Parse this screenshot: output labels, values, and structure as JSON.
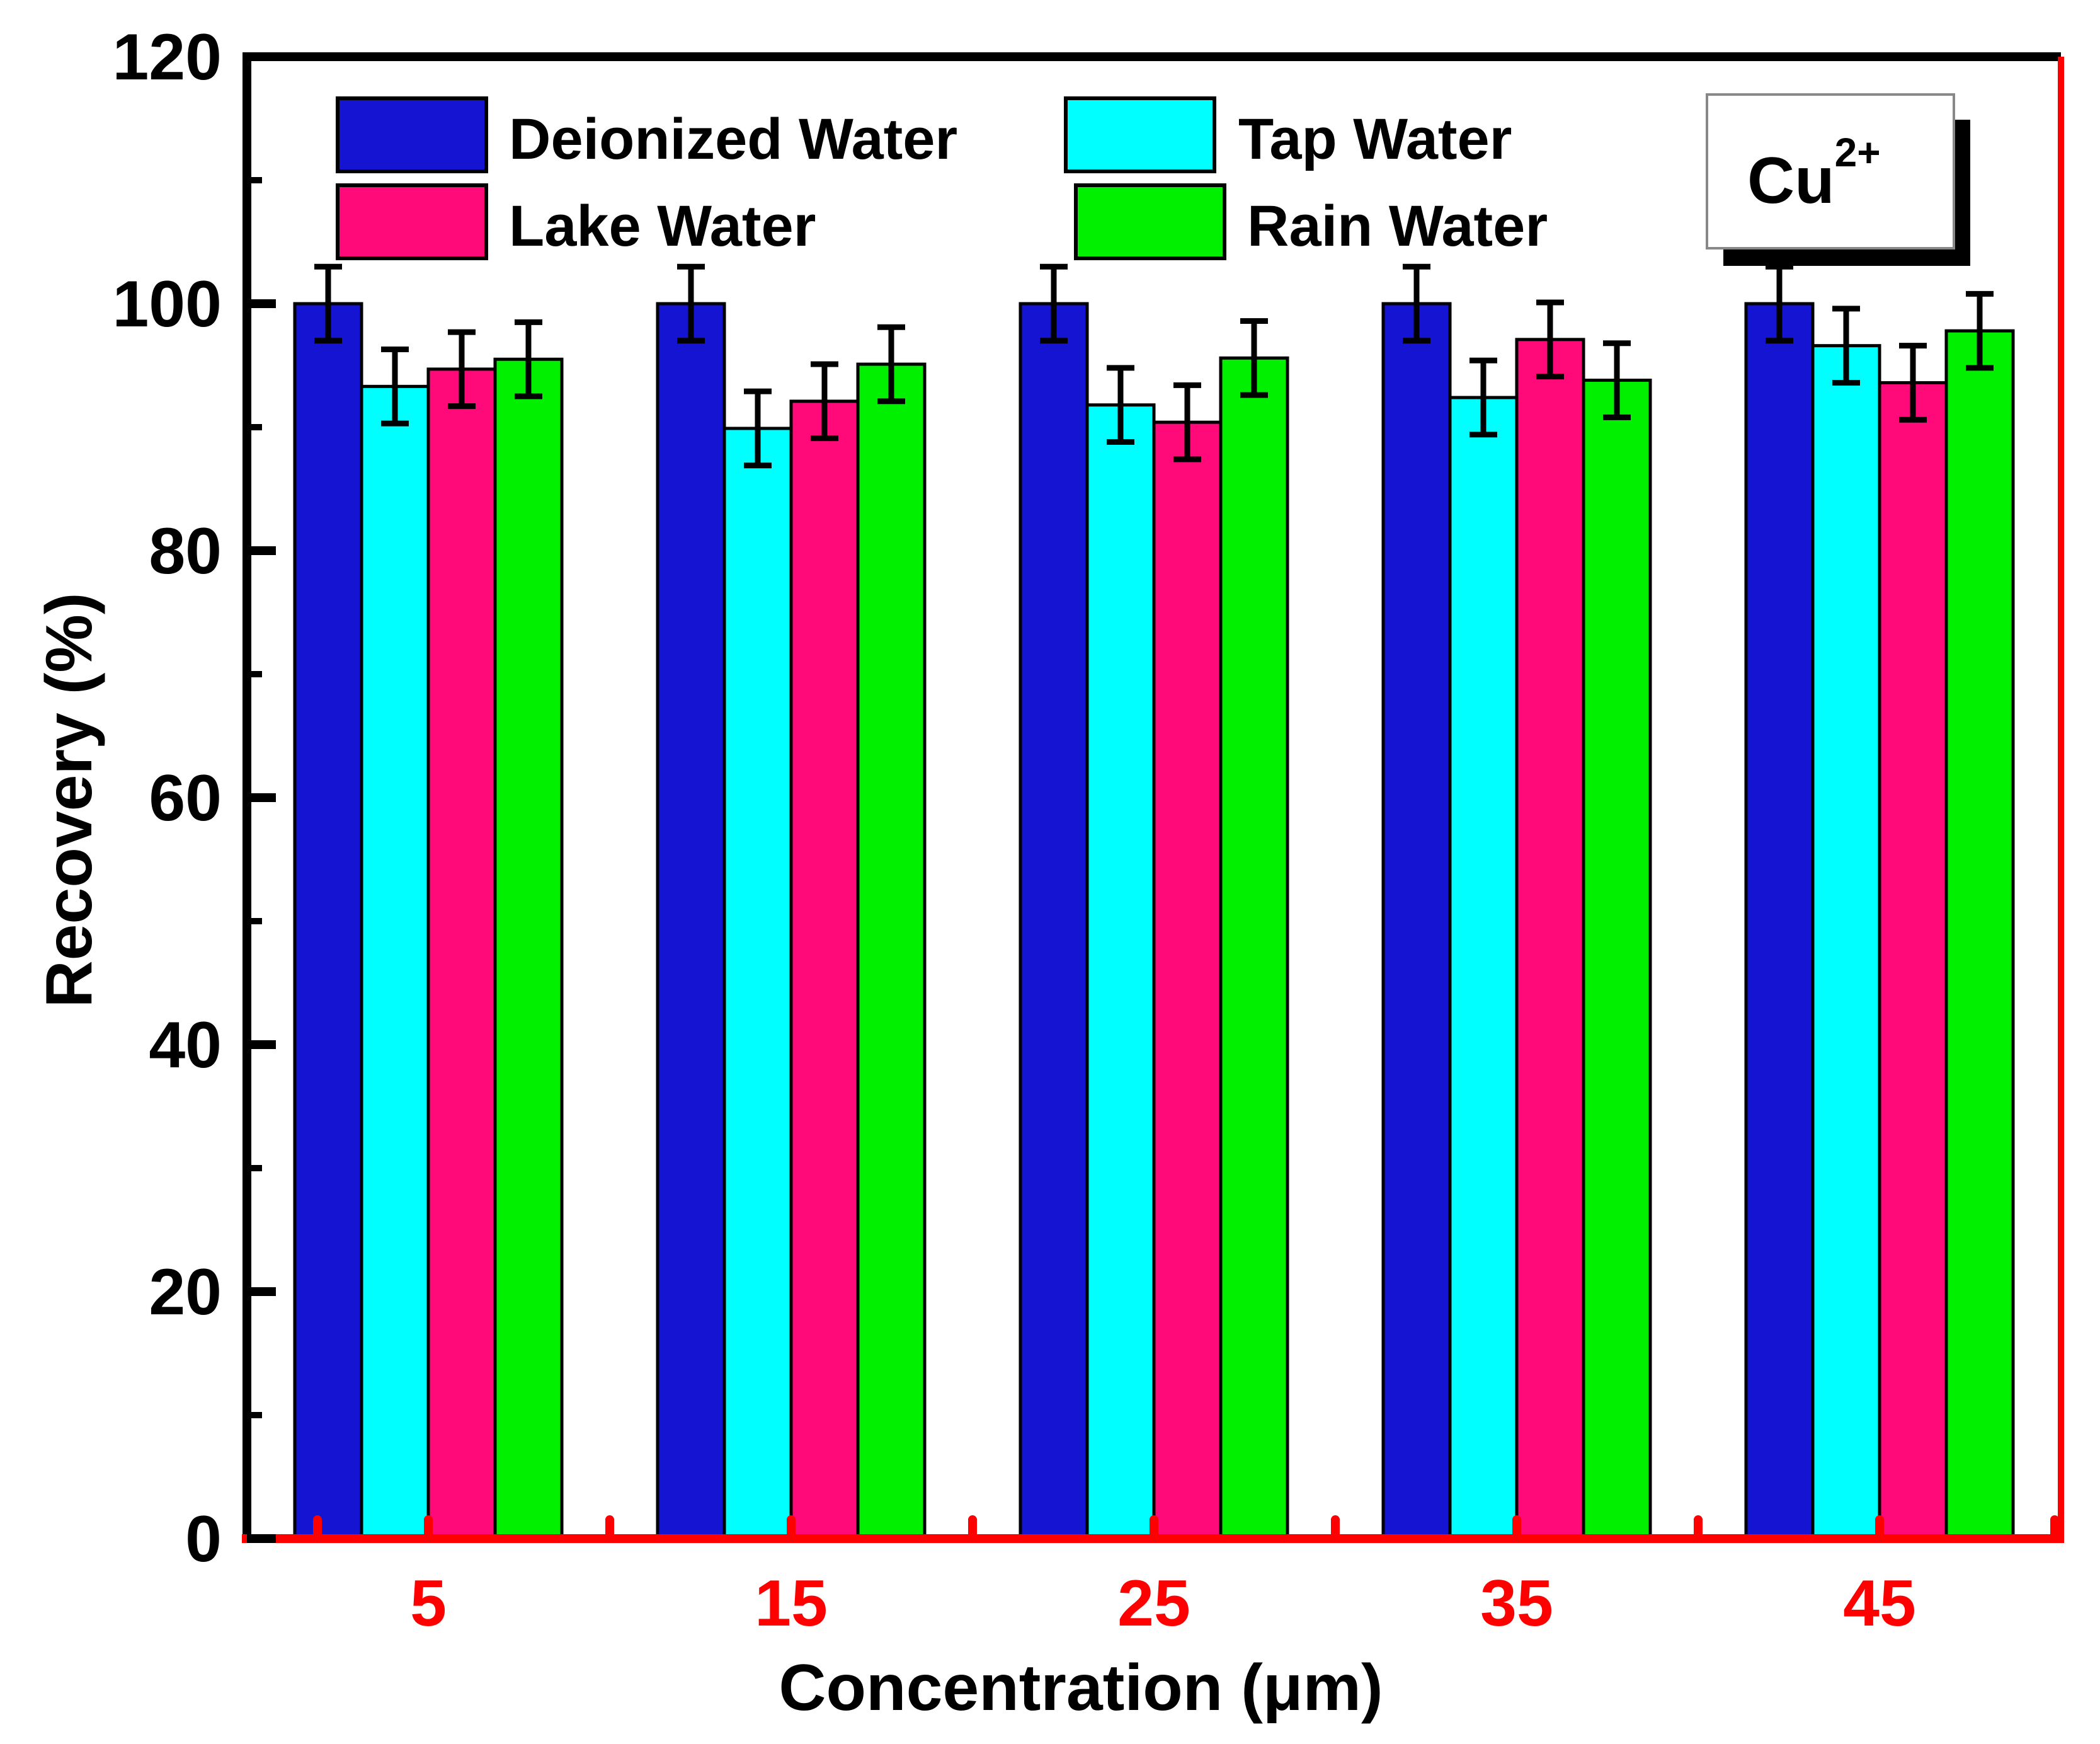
{
  "chart_data": {
    "type": "bar",
    "xlabel": "Concentration (μm)",
    "ylabel": "Recovery (%)",
    "ylim": [
      0,
      120
    ],
    "yticks": [
      "0",
      "20",
      "40",
      "60",
      "80",
      "100",
      "120"
    ],
    "categories": [
      "5",
      "15",
      "25",
      "35",
      "45"
    ],
    "series": [
      {
        "name": "Deionized Water",
        "color": "#1414d2",
        "values": [
          100,
          100,
          100,
          100,
          100
        ],
        "errors": [
          3,
          3,
          3,
          3,
          3
        ]
      },
      {
        "name": "Tap Water",
        "color": "#00ffff",
        "values": [
          93.3,
          89.9,
          91.8,
          92.4,
          96.6
        ],
        "errors": [
          3,
          3,
          3,
          3,
          3
        ]
      },
      {
        "name": "Lake Water",
        "color": "#ff0a78",
        "values": [
          94.7,
          92.1,
          90.4,
          97.1,
          93.6
        ],
        "errors": [
          3,
          3,
          3,
          3,
          3
        ]
      },
      {
        "name": "Rain Water",
        "color": "#00f000",
        "values": [
          95.5,
          95.1,
          95.6,
          93.8,
          97.8
        ],
        "errors": [
          3,
          3,
          3,
          3,
          3
        ]
      }
    ],
    "annotation": {
      "base": "Cu",
      "sup": "2+"
    },
    "legend_position": "top",
    "grid": false,
    "frame_colors": {
      "left": "#000000",
      "top": "#000000",
      "right": "#ff0000",
      "bottom": "#ff0000"
    },
    "category_label_color": "#ff0000"
  }
}
